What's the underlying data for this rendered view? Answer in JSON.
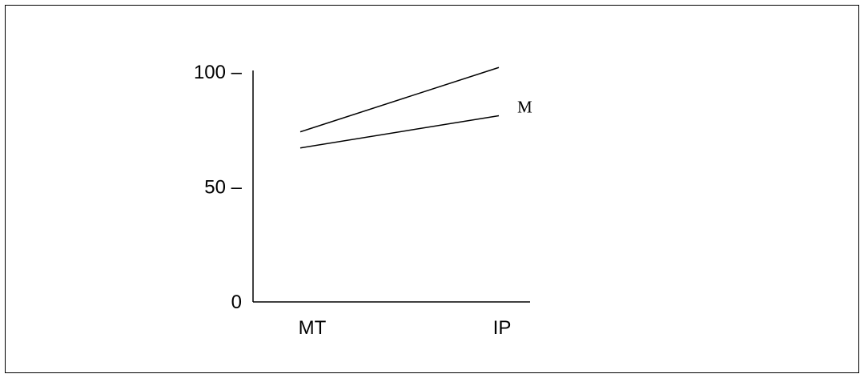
{
  "chart_data": {
    "type": "line",
    "categories": [
      "MT",
      "IP"
    ],
    "series": [
      {
        "name": "",
        "values": [
          74,
          102
        ]
      },
      {
        "name": "M",
        "values": [
          67,
          81
        ]
      }
    ],
    "y_ticks": [
      {
        "value": 100,
        "label": "100 –"
      },
      {
        "value": 50,
        "label": "50 –"
      },
      {
        "value": 0,
        "label": "0"
      }
    ],
    "ylim": [
      0,
      100
    ],
    "grid": false,
    "legend": "none",
    "colors": {
      "line": "#000000",
      "axis": "#000000"
    }
  }
}
